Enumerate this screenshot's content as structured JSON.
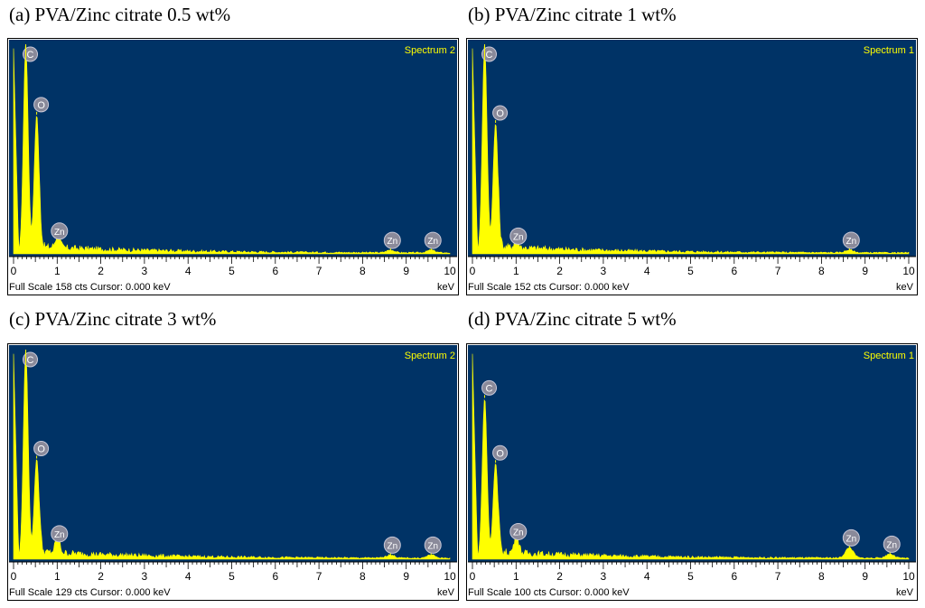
{
  "chart_data": [
    {
      "type": "line",
      "panel_label": "(a) PVA/Zinc citrate 0.5 wt%",
      "spectrum_label": "Spectrum 2",
      "footer": "Full Scale 158 cts  Cursor: 0.000 keV",
      "xunits": "keV",
      "xlim": [
        0,
        10
      ],
      "ylim": [
        0,
        158
      ],
      "x_ticks": [
        "0",
        "1",
        "2",
        "3",
        "4",
        "5",
        "6",
        "7",
        "8",
        "9",
        "10"
      ],
      "peaks": [
        {
          "element": "C",
          "energy": 0.28,
          "counts": 158
        },
        {
          "element": "O",
          "energy": 0.53,
          "counts": 105
        },
        {
          "element": "Zn",
          "energy": 1.01,
          "counts": 9
        },
        {
          "element": "Zn",
          "energy": 8.64,
          "counts": 2
        },
        {
          "element": "Zn",
          "energy": 9.57,
          "counts": 2
        }
      ]
    },
    {
      "type": "line",
      "panel_label": "(b) PVA/Zinc citrate 1 wt%",
      "spectrum_label": "Spectrum 1",
      "footer": "Full Scale 152 cts  Cursor: 0.000 keV",
      "xunits": "keV",
      "xlim": [
        0,
        10
      ],
      "ylim": [
        0,
        152
      ],
      "x_ticks": [
        "0",
        "1",
        "2",
        "3",
        "4",
        "5",
        "6",
        "7",
        "8",
        "9",
        "10"
      ],
      "peaks": [
        {
          "element": "C",
          "energy": 0.28,
          "counts": 152
        },
        {
          "element": "O",
          "energy": 0.53,
          "counts": 95
        },
        {
          "element": "Zn",
          "energy": 1.01,
          "counts": 5
        },
        {
          "element": "Zn",
          "energy": 8.64,
          "counts": 2
        }
      ]
    },
    {
      "type": "line",
      "panel_label": "(c) PVA/Zinc citrate 3 wt%",
      "spectrum_label": "Spectrum 2",
      "footer": "Full Scale 129 cts  Cursor: 0.000 keV",
      "xunits": "keV",
      "xlim": [
        0,
        10
      ],
      "ylim": [
        0,
        129
      ],
      "x_ticks": [
        "0",
        "1",
        "2",
        "3",
        "4",
        "5",
        "6",
        "7",
        "8",
        "9",
        "10"
      ],
      "peaks": [
        {
          "element": "C",
          "energy": 0.28,
          "counts": 129
        },
        {
          "element": "O",
          "energy": 0.53,
          "counts": 62
        },
        {
          "element": "Zn",
          "energy": 1.01,
          "counts": 9
        },
        {
          "element": "Zn",
          "energy": 8.64,
          "counts": 2
        },
        {
          "element": "Zn",
          "energy": 9.57,
          "counts": 2
        }
      ]
    },
    {
      "type": "line",
      "panel_label": "(d) PVA/Zinc citrate 5 wt%",
      "spectrum_label": "Spectrum 1",
      "footer": "Full Scale 100 cts  Cursor: 0.000 keV",
      "xunits": "keV",
      "xlim": [
        0,
        10
      ],
      "ylim": [
        0,
        100
      ],
      "x_ticks": [
        "0",
        "1",
        "2",
        "3",
        "4",
        "5",
        "6",
        "7",
        "8",
        "9",
        "10"
      ],
      "peaks": [
        {
          "element": "C",
          "energy": 0.28,
          "counts": 77
        },
        {
          "element": "O",
          "energy": 0.53,
          "counts": 46
        },
        {
          "element": "Zn",
          "energy": 1.01,
          "counts": 8
        },
        {
          "element": "Zn",
          "energy": 8.64,
          "counts": 5
        },
        {
          "element": "Zn",
          "energy": 9.57,
          "counts": 2
        }
      ]
    }
  ],
  "colors": {
    "plot_background": "#003366",
    "spectrum": "#ffff00",
    "label_text": "#ffff00",
    "marker_fill": "#8a8a9a"
  }
}
